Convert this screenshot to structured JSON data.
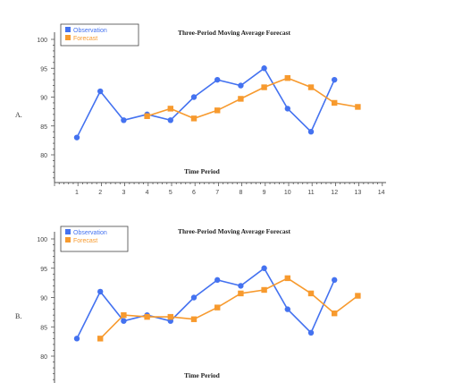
{
  "chart_data": [
    {
      "type": "line",
      "panel_label": "A.",
      "title": "Three-Period Moving Average Forecast",
      "xlabel": "Time Period",
      "ylabel": "",
      "xlim": [
        0,
        14
      ],
      "ylim": [
        75,
        100
      ],
      "x_ticks": [
        1,
        2,
        3,
        4,
        5,
        6,
        7,
        8,
        9,
        10,
        11,
        12,
        13,
        14
      ],
      "y_ticks": [
        80,
        85,
        90,
        95,
        100
      ],
      "legend": "top-left",
      "grid": false,
      "series": [
        {
          "name": "Observation",
          "color": "#4472f0",
          "marker": "circle",
          "points": [
            [
              1,
              83
            ],
            [
              2,
              91
            ],
            [
              3,
              86
            ],
            [
              4,
              87
            ],
            [
              5,
              86
            ],
            [
              6,
              90
            ],
            [
              7,
              93
            ],
            [
              8,
              92
            ],
            [
              9,
              95
            ],
            [
              10,
              88
            ],
            [
              11,
              84
            ],
            [
              12,
              93
            ]
          ]
        },
        {
          "name": "Forecast",
          "color": "#f79a2e",
          "marker": "square",
          "points": [
            [
              4,
              86.7
            ],
            [
              5,
              88
            ],
            [
              6,
              86.3
            ],
            [
              7,
              87.7
            ],
            [
              8,
              89.7
            ],
            [
              9,
              91.7
            ],
            [
              10,
              93.3
            ],
            [
              11,
              91.7
            ],
            [
              12,
              89
            ],
            [
              13,
              88.3
            ]
          ]
        }
      ]
    },
    {
      "type": "line",
      "panel_label": "B.",
      "title": "Three-Period Moving Average Forecast",
      "xlabel": "Time Period",
      "ylabel": "",
      "xlim": [
        0,
        14
      ],
      "ylim": [
        75,
        100
      ],
      "x_ticks": [],
      "y_ticks": [
        80,
        85,
        90,
        95,
        100
      ],
      "legend": "top-left",
      "grid": false,
      "series": [
        {
          "name": "Observation",
          "color": "#4472f0",
          "marker": "circle",
          "points": [
            [
              1,
              83
            ],
            [
              2,
              91
            ],
            [
              3,
              86
            ],
            [
              4,
              87
            ],
            [
              5,
              86
            ],
            [
              6,
              90
            ],
            [
              7,
              93
            ],
            [
              8,
              92
            ],
            [
              9,
              95
            ],
            [
              10,
              88
            ],
            [
              11,
              84
            ],
            [
              12,
              93
            ]
          ]
        },
        {
          "name": "Forecast",
          "color": "#f79a2e",
          "marker": "square",
          "points": [
            [
              2,
              83
            ],
            [
              3,
              87
            ],
            [
              4,
              86.7
            ],
            [
              5,
              86.7
            ],
            [
              6,
              86.3
            ],
            [
              7,
              88.3
            ],
            [
              8,
              90.7
            ],
            [
              9,
              91.3
            ],
            [
              10,
              93.3
            ],
            [
              11,
              90.7
            ],
            [
              12,
              87.3
            ],
            [
              13,
              90.3
            ]
          ]
        }
      ]
    }
  ]
}
